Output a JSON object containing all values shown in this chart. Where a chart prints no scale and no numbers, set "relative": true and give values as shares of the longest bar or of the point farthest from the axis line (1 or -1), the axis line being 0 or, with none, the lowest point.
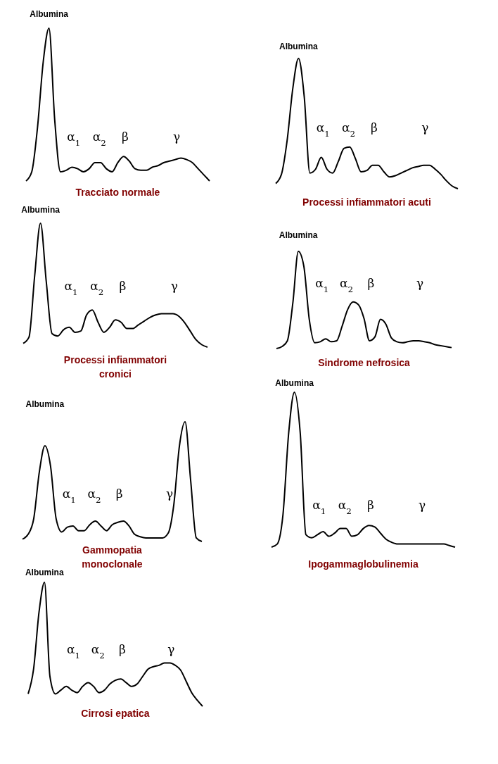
{
  "chart_data": [
    {
      "type": "line",
      "title": "Tracciato normale",
      "relative": true,
      "color": "#000000",
      "categories": [
        null,
        null,
        null,
        null,
        null,
        null,
        null,
        null,
        null,
        null,
        null,
        null,
        null,
        null,
        null,
        null,
        null,
        null,
        null,
        null,
        null,
        null,
        null,
        null,
        null,
        null,
        null,
        null,
        null,
        null,
        null,
        null,
        null
      ],
      "values": [
        0,
        0.06,
        0.35,
        0.78,
        1,
        0.4,
        0.06,
        0.07,
        0.09,
        0.08,
        0.06,
        0.08,
        0.12,
        0.12,
        0.08,
        0.06,
        0.12,
        0.16,
        0.13,
        0.08,
        0.07,
        0.07,
        0.09,
        0.1,
        0.12,
        0.13,
        0.14,
        0.15,
        0.14,
        0.12,
        0.08,
        0.04,
        0
      ],
      "annotations": [
        "Albumina",
        "α$_{1}$",
        "α$_{2}$",
        "β",
        "γ"
      ]
    },
    {
      "type": "line",
      "title": "Processi infiammatori acuti",
      "relative": true,
      "color": "#000000",
      "categories": [
        null,
        null,
        null,
        null,
        null,
        null,
        null,
        null,
        null,
        null,
        null,
        null,
        null,
        null,
        null,
        null,
        null,
        null,
        null,
        null,
        null,
        null,
        null,
        null,
        null,
        null,
        null,
        null,
        null,
        null,
        null,
        null,
        null
      ],
      "values": [
        0.04,
        0.11,
        0.37,
        0.77,
        1,
        0.71,
        0.12,
        0.15,
        0.24,
        0.15,
        0.12,
        0.21,
        0.31,
        0.32,
        0.23,
        0.13,
        0.14,
        0.18,
        0.18,
        0.13,
        0.09,
        0.1,
        0.12,
        0.14,
        0.16,
        0.17,
        0.18,
        0.18,
        0.15,
        0.11,
        0.06,
        0.02,
        0
      ],
      "annotations": [
        "Albumina",
        "α$_{1}$",
        "α$_{2}$",
        "β",
        "γ"
      ]
    },
    {
      "type": "line",
      "title": "Processi infiammatori\ncronici",
      "relative": true,
      "color": "#000000",
      "categories": [
        null,
        null,
        null,
        null,
        null,
        null,
        null,
        null,
        null,
        null,
        null,
        null,
        null,
        null,
        null,
        null,
        null,
        null,
        null,
        null,
        null,
        null,
        null,
        null,
        null,
        null,
        null,
        null,
        null,
        null,
        null,
        null,
        null
      ],
      "values": [
        0.03,
        0.08,
        0.58,
        1,
        0.53,
        0.11,
        0.09,
        0.14,
        0.16,
        0.12,
        0.13,
        0.26,
        0.3,
        0.2,
        0.12,
        0.16,
        0.22,
        0.2,
        0.15,
        0.15,
        0.18,
        0.21,
        0.24,
        0.26,
        0.27,
        0.27,
        0.27,
        0.25,
        0.2,
        0.13,
        0.06,
        0.02,
        0
      ],
      "annotations": [
        "Albumina",
        "α$_{1}$",
        "α$_{2}$",
        "β",
        "γ"
      ]
    },
    {
      "type": "line",
      "title": "Sindrome nefrosica",
      "relative": true,
      "color": "#000000",
      "categories": [
        null,
        null,
        null,
        null,
        null,
        null,
        null,
        null,
        null,
        null,
        null,
        null,
        null,
        null,
        null,
        null,
        null,
        null,
        null,
        null,
        null,
        null,
        null,
        null,
        null,
        null,
        null,
        null,
        null,
        null,
        null,
        null,
        null
      ],
      "values": [
        0,
        0.02,
        0.08,
        0.47,
        1,
        0.85,
        0.3,
        0.06,
        0.07,
        0.1,
        0.07,
        0.08,
        0.23,
        0.4,
        0.48,
        0.45,
        0.31,
        0.08,
        0.12,
        0.3,
        0.25,
        0.11,
        0.07,
        0.06,
        0.07,
        0.08,
        0.08,
        0.07,
        0.06,
        0.04,
        0.03,
        0.02,
        0.01
      ],
      "annotations": [
        "Albumina",
        "α$_{1}$",
        "α$_{2}$",
        "β",
        "γ"
      ]
    },
    {
      "type": "line",
      "title": "Gammopatia\nmonoclonale",
      "relative": true,
      "color": "#000000",
      "categories": [
        null,
        null,
        null,
        null,
        null,
        null,
        null,
        null,
        null,
        null,
        null,
        null,
        null,
        null,
        null,
        null,
        null,
        null,
        null,
        null,
        null,
        null,
        null,
        null,
        null,
        null,
        null,
        null,
        null,
        null,
        null,
        null,
        null
      ],
      "values": [
        0.02,
        0.06,
        0.19,
        0.58,
        0.8,
        0.63,
        0.19,
        0.08,
        0.12,
        0.13,
        0.09,
        0.09,
        0.14,
        0.17,
        0.13,
        0.09,
        0.14,
        0.16,
        0.17,
        0.13,
        0.06,
        0.04,
        0.03,
        0.03,
        0.03,
        0.03,
        0.07,
        0.31,
        0.8,
        1,
        0.51,
        0.03,
        0
      ],
      "annotations": [
        "Albumina",
        "α$_{1}$",
        "α$_{2}$",
        "β",
        "γ"
      ]
    },
    {
      "type": "line",
      "title": "Ipogammaglobulinemia",
      "relative": true,
      "color": "#000000",
      "categories": [
        null,
        null,
        null,
        null,
        null,
        null,
        null,
        null,
        null,
        null,
        null,
        null,
        null,
        null,
        null,
        null,
        null,
        null,
        null,
        null,
        null,
        null,
        null,
        null,
        null,
        null,
        null,
        null,
        null,
        null,
        null,
        null,
        null
      ],
      "values": [
        0,
        0.02,
        0.21,
        0.74,
        1,
        0.74,
        0.08,
        0.06,
        0.08,
        0.1,
        0.07,
        0.09,
        0.12,
        0.12,
        0.07,
        0.08,
        0.12,
        0.14,
        0.13,
        0.09,
        0.05,
        0.03,
        0.02,
        0.02,
        0.02,
        0.02,
        0.02,
        0.02,
        0.02,
        0.02,
        0.02,
        0.01,
        0
      ],
      "annotations": [
        "Albumina",
        "α$_{1}$",
        "α$_{2}$",
        "β",
        "γ"
      ]
    },
    {
      "type": "line",
      "title": "Cirrosi epatica",
      "relative": true,
      "color": "#000000",
      "categories": [
        null,
        null,
        null,
        null,
        null,
        null,
        null,
        null,
        null,
        null,
        null,
        null,
        null,
        null,
        null,
        null,
        null,
        null,
        null,
        null,
        null,
        null,
        null,
        null,
        null,
        null,
        null,
        null,
        null,
        null,
        null,
        null,
        null
      ],
      "values": [
        0.1,
        0.3,
        0.76,
        1,
        0.24,
        0.1,
        0.13,
        0.16,
        0.13,
        0.11,
        0.16,
        0.19,
        0.16,
        0.11,
        0.13,
        0.18,
        0.21,
        0.22,
        0.19,
        0.16,
        0.18,
        0.24,
        0.3,
        0.32,
        0.33,
        0.35,
        0.35,
        0.33,
        0.29,
        0.2,
        0.11,
        0.05,
        0
      ],
      "annotations": [
        "Albumina",
        "α$_{1}$",
        "α$_{2}$",
        "β",
        "γ"
      ]
    }
  ]
}
